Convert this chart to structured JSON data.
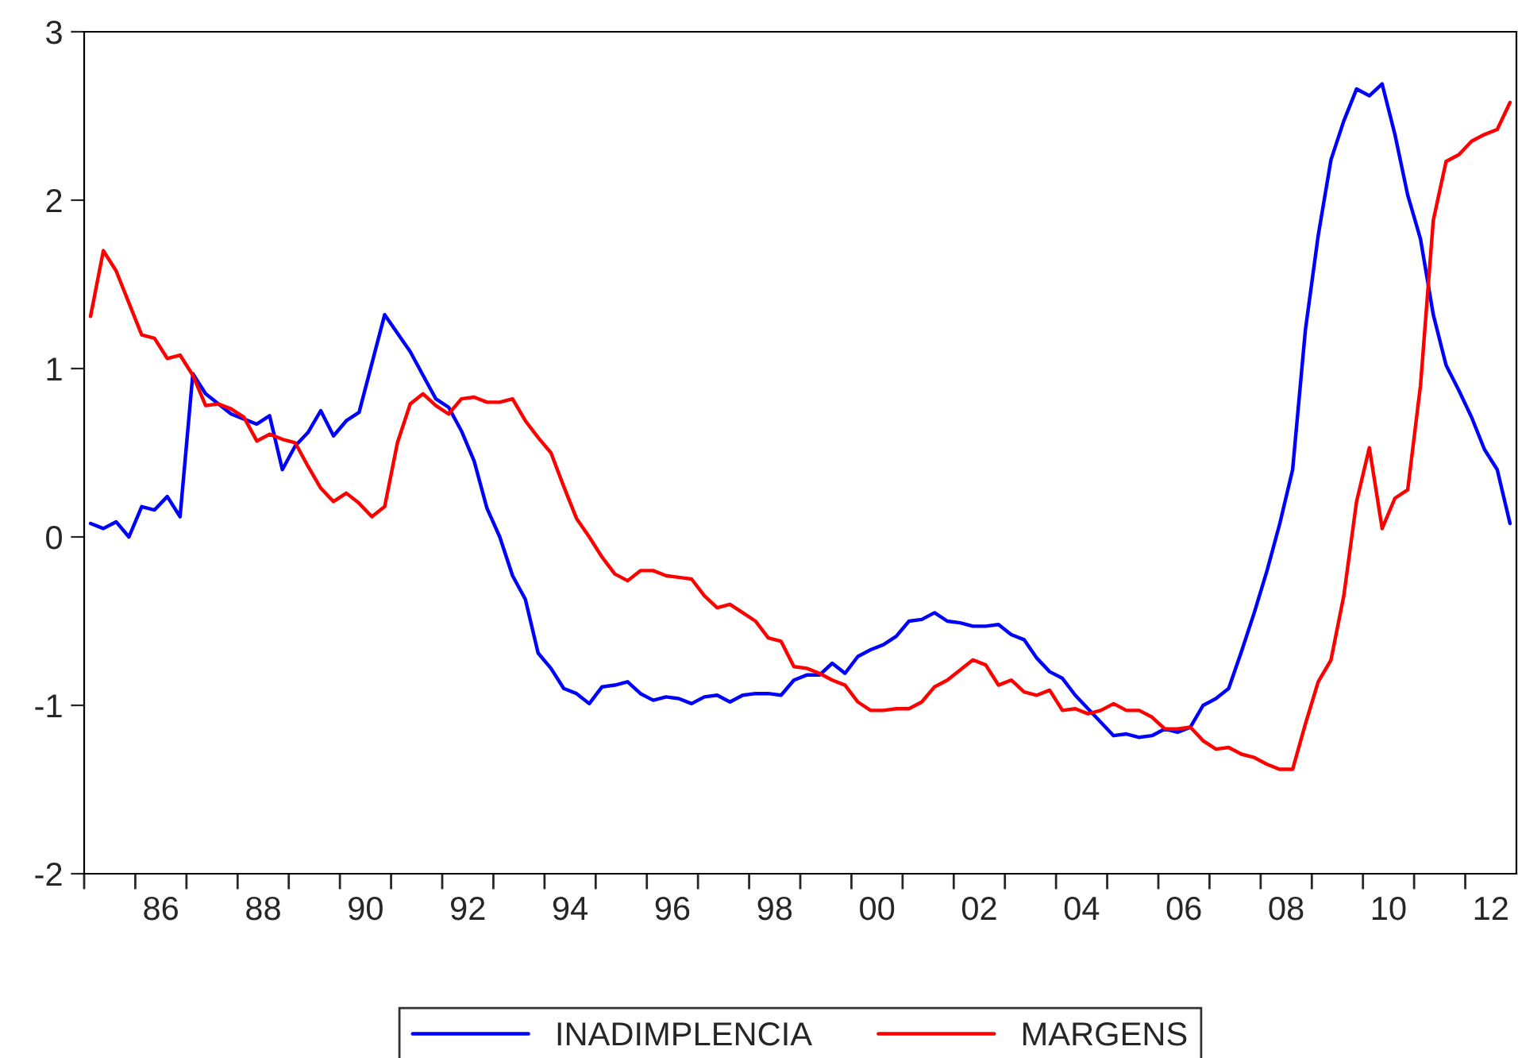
{
  "chart_data": {
    "type": "line",
    "x": [
      "1985-02",
      "1985-05",
      "1985-08",
      "1985-11",
      "1986-02",
      "1986-05",
      "1986-08",
      "1986-11",
      "1987-02",
      "1987-05",
      "1987-08",
      "1987-11",
      "1988-02",
      "1988-05",
      "1988-08",
      "1988-11",
      "1989-02",
      "1989-05",
      "1989-08",
      "1989-11",
      "1990-02",
      "1990-05",
      "1990-08",
      "1990-11",
      "1991-02",
      "1991-05",
      "1991-08",
      "1991-11",
      "1992-02",
      "1992-05",
      "1992-08",
      "1992-11",
      "1993-02",
      "1993-05",
      "1993-08",
      "1993-11",
      "1994-02",
      "1994-05",
      "1994-08",
      "1994-11",
      "1995-02",
      "1995-05",
      "1995-08",
      "1995-11",
      "1996-02",
      "1996-05",
      "1996-08",
      "1996-11",
      "1997-02",
      "1997-05",
      "1997-08",
      "1997-11",
      "1998-02",
      "1998-05",
      "1998-08",
      "1998-11",
      "1999-02",
      "1999-05",
      "1999-08",
      "1999-11",
      "2000-02",
      "2000-05",
      "2000-08",
      "2000-11",
      "2001-02",
      "2001-05",
      "2001-08",
      "2001-11",
      "2002-02",
      "2002-05",
      "2002-08",
      "2002-11",
      "2003-02",
      "2003-05",
      "2003-08",
      "2003-11",
      "2004-02",
      "2004-05",
      "2004-08",
      "2004-11",
      "2005-02",
      "2005-05",
      "2005-08",
      "2005-11",
      "2006-02",
      "2006-05",
      "2006-08",
      "2006-11",
      "2007-02",
      "2007-05",
      "2007-08",
      "2007-11",
      "2008-02",
      "2008-05",
      "2008-08",
      "2008-11",
      "2009-02",
      "2009-05",
      "2009-08",
      "2009-11",
      "2010-02",
      "2010-05",
      "2010-08",
      "2010-11",
      "2011-02",
      "2011-05",
      "2011-08",
      "2011-11",
      "2012-02",
      "2012-05",
      "2012-08",
      "2012-11"
    ],
    "series": [
      {
        "name": "INADIMPLENCIA",
        "color": "#0000ff",
        "values": [
          0.08,
          0.05,
          0.09,
          0.0,
          0.18,
          0.16,
          0.24,
          0.12,
          0.97,
          0.85,
          0.79,
          0.73,
          0.7,
          0.67,
          0.72,
          0.4,
          0.54,
          0.62,
          0.75,
          0.6,
          0.69,
          0.74,
          1.03,
          1.32,
          1.21,
          1.1,
          0.96,
          0.82,
          0.77,
          0.63,
          0.45,
          0.17,
          0.0,
          -0.23,
          -0.37,
          -0.69,
          -0.78,
          -0.9,
          -0.93,
          -0.99,
          -0.89,
          -0.88,
          -0.86,
          -0.93,
          -0.97,
          -0.95,
          -0.96,
          -0.99,
          -0.95,
          -0.94,
          -0.98,
          -0.94,
          -0.93,
          -0.93,
          -0.94,
          -0.85,
          -0.82,
          -0.82,
          -0.75,
          -0.81,
          -0.71,
          -0.67,
          -0.64,
          -0.59,
          -0.5,
          -0.49,
          -0.45,
          -0.5,
          -0.51,
          -0.53,
          -0.53,
          -0.52,
          -0.58,
          -0.61,
          -0.72,
          -0.8,
          -0.84,
          -0.94,
          -1.02,
          -1.1,
          -1.18,
          -1.17,
          -1.19,
          -1.18,
          -1.14,
          -1.16,
          -1.13,
          -1.0,
          -0.96,
          -0.9,
          -0.68,
          -0.45,
          -0.2,
          0.08,
          0.4,
          1.23,
          1.79,
          2.24,
          2.47,
          2.66,
          2.62,
          2.69,
          2.39,
          2.03,
          1.77,
          1.32,
          1.02,
          0.87,
          0.71,
          0.52,
          0.4,
          0.08
        ]
      },
      {
        "name": "MARGENS",
        "color": "#ff0000",
        "values": [
          1.31,
          1.7,
          1.58,
          1.39,
          1.2,
          1.18,
          1.06,
          1.08,
          0.96,
          0.78,
          0.79,
          0.76,
          0.71,
          0.57,
          0.61,
          0.58,
          0.56,
          0.42,
          0.29,
          0.21,
          0.26,
          0.2,
          0.12,
          0.18,
          0.56,
          0.79,
          0.85,
          0.78,
          0.73,
          0.82,
          0.83,
          0.8,
          0.8,
          0.82,
          0.69,
          0.59,
          0.5,
          0.3,
          0.11,
          0.0,
          -0.12,
          -0.22,
          -0.26,
          -0.2,
          -0.2,
          -0.23,
          -0.24,
          -0.25,
          -0.35,
          -0.42,
          -0.4,
          -0.45,
          -0.5,
          -0.6,
          -0.62,
          -0.77,
          -0.78,
          -0.81,
          -0.85,
          -0.88,
          -0.98,
          -1.03,
          -1.03,
          -1.02,
          -1.02,
          -0.98,
          -0.89,
          -0.85,
          -0.79,
          -0.73,
          -0.76,
          -0.88,
          -0.85,
          -0.92,
          -0.94,
          -0.91,
          -1.03,
          -1.02,
          -1.05,
          -1.03,
          -0.99,
          -1.03,
          -1.03,
          -1.07,
          -1.14,
          -1.14,
          -1.13,
          -1.21,
          -1.26,
          -1.25,
          -1.29,
          -1.31,
          -1.35,
          -1.38,
          -1.38,
          -1.11,
          -0.86,
          -0.73,
          -0.35,
          0.21,
          0.53,
          0.05,
          0.23,
          0.28,
          0.9,
          1.88,
          2.23,
          2.27,
          2.35,
          2.39,
          2.42,
          2.58
        ]
      }
    ],
    "xlim": [
      "1985",
      "2013"
    ],
    "xticks": [
      {
        "value": "1985",
        "label": null
      },
      {
        "value": "1986",
        "label": null
      },
      {
        "value": "1987",
        "label": null
      },
      {
        "value": "1988",
        "label": null
      },
      {
        "value": "1989",
        "label": null
      },
      {
        "value": "1990",
        "label": null
      },
      {
        "value": "1991",
        "label": null
      },
      {
        "value": "1992",
        "label": null
      },
      {
        "value": "1993",
        "label": null
      },
      {
        "value": "1994",
        "label": null
      },
      {
        "value": "1995",
        "label": null
      },
      {
        "value": "1996",
        "label": null
      },
      {
        "value": "1997",
        "label": null
      },
      {
        "value": "1998",
        "label": null
      },
      {
        "value": "1999",
        "label": null
      },
      {
        "value": "2000",
        "label": null
      },
      {
        "value": "2001",
        "label": null
      },
      {
        "value": "2002",
        "label": null
      },
      {
        "value": "2003",
        "label": null
      },
      {
        "value": "2004",
        "label": null
      },
      {
        "value": "2005",
        "label": null
      },
      {
        "value": "2006",
        "label": null
      },
      {
        "value": "2007",
        "label": null
      },
      {
        "value": "2008",
        "label": null
      },
      {
        "value": "2009",
        "label": null
      },
      {
        "value": "2010",
        "label": null
      },
      {
        "value": "2011",
        "label": null
      },
      {
        "value": "2012",
        "label": null
      },
      {
        "value": "1986-07",
        "label": "86"
      },
      {
        "value": "1988-07",
        "label": "88"
      },
      {
        "value": "1990-07",
        "label": "90"
      },
      {
        "value": "1992-07",
        "label": "92"
      },
      {
        "value": "1994-07",
        "label": "94"
      },
      {
        "value": "1996-07",
        "label": "96"
      },
      {
        "value": "1998-07",
        "label": "98"
      },
      {
        "value": "2000-07",
        "label": "00"
      },
      {
        "value": "2002-07",
        "label": "02"
      },
      {
        "value": "2004-07",
        "label": "04"
      },
      {
        "value": "2006-07",
        "label": "06"
      },
      {
        "value": "2008-07",
        "label": "08"
      },
      {
        "value": "2010-07",
        "label": "10"
      },
      {
        "value": "2012-07",
        "label": "12"
      }
    ],
    "ylim": [
      -2,
      3
    ],
    "yticks": [
      -2,
      -1,
      0,
      1,
      2,
      3
    ],
    "grid": false,
    "legend": "bottom",
    "line_style": "solid",
    "marker": "none"
  }
}
